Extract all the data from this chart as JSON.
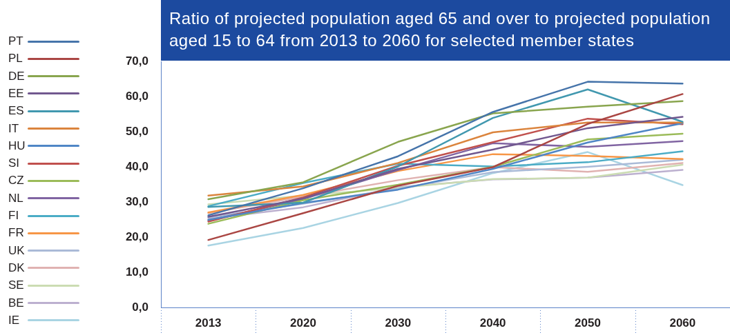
{
  "chart_data": {
    "type": "line",
    "title": "Ratio of projected population aged 65 and over to projected population aged 15 to 64 from 2013 to 2060 for selected member states",
    "categories": [
      "2013",
      "2020",
      "2030",
      "2040",
      "2050",
      "2060"
    ],
    "series": [
      {
        "name": "PT",
        "color": "#4674aa",
        "values": [
          26.2,
          33.9,
          43.0,
          55.6,
          64.2,
          63.7
        ]
      },
      {
        "name": "PL",
        "color": "#aa4643",
        "values": [
          19.2,
          26.8,
          34.6,
          39.9,
          52.2,
          60.7
        ]
      },
      {
        "name": "DE",
        "color": "#89a54e",
        "values": [
          30.8,
          35.6,
          47.1,
          55.2,
          57.1,
          58.7
        ]
      },
      {
        "name": "EE",
        "color": "#71588f",
        "values": [
          25.8,
          31.0,
          39.4,
          44.9,
          51.0,
          54.2
        ]
      },
      {
        "name": "ES",
        "color": "#4198af",
        "values": [
          28.6,
          29.8,
          40.1,
          53.9,
          62.0,
          52.8
        ]
      },
      {
        "name": "IT",
        "color": "#db843d",
        "values": [
          31.8,
          34.4,
          41.1,
          49.8,
          52.6,
          52.6
        ]
      },
      {
        "name": "HU",
        "color": "#4f86c6",
        "values": [
          24.9,
          29.7,
          33.5,
          39.4,
          46.9,
          52.4
        ]
      },
      {
        "name": "SI",
        "color": "#c0504d",
        "values": [
          24.4,
          31.3,
          40.3,
          47.0,
          53.7,
          52.1
        ]
      },
      {
        "name": "CZ",
        "color": "#9bbb59",
        "values": [
          23.8,
          30.5,
          34.9,
          40.0,
          47.8,
          49.4
        ]
      },
      {
        "name": "NL",
        "color": "#8064a2",
        "values": [
          24.7,
          30.8,
          39.1,
          46.7,
          45.7,
          47.3
        ]
      },
      {
        "name": "FI",
        "color": "#4bacc6",
        "values": [
          28.8,
          35.4,
          40.9,
          40.1,
          41.3,
          44.4
        ]
      },
      {
        "name": "FR",
        "color": "#f79646",
        "values": [
          27.0,
          32.0,
          38.8,
          43.6,
          43.1,
          42.2
        ]
      },
      {
        "name": "UK",
        "color": "#aabad7",
        "values": [
          25.6,
          29.5,
          33.8,
          38.5,
          40.0,
          42.0
        ]
      },
      {
        "name": "DK",
        "color": "#e0b2b1",
        "values": [
          26.8,
          31.5,
          36.2,
          39.9,
          38.6,
          41.1
        ]
      },
      {
        "name": "SE",
        "color": "#cbdcb2",
        "values": [
          29.3,
          31.8,
          34.0,
          36.5,
          36.9,
          40.6
        ]
      },
      {
        "name": "BE",
        "color": "#bcb0cf",
        "values": [
          25.2,
          28.5,
          34.2,
          36.4,
          36.9,
          39.1
        ]
      },
      {
        "name": "IE",
        "color": "#a9d4e3",
        "values": [
          17.6,
          22.6,
          29.7,
          38.2,
          44.2,
          34.8
        ]
      }
    ],
    "ylim": [
      0,
      70
    ],
    "yticks": [
      {
        "value": 0,
        "label": "0,0"
      },
      {
        "value": 10,
        "label": "10,0"
      },
      {
        "value": 20,
        "label": "20,0"
      },
      {
        "value": 30,
        "label": "30,0"
      },
      {
        "value": 40,
        "label": "40,0"
      },
      {
        "value": 50,
        "label": "50,0"
      },
      {
        "value": 60,
        "label": "60,0"
      },
      {
        "value": 70,
        "label": "70,0"
      }
    ],
    "legend": "left",
    "grid": false,
    "marker": "none",
    "line_style": "solid"
  }
}
